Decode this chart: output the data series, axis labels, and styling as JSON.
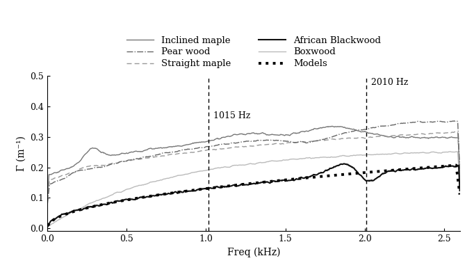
{
  "xlim": [
    0,
    2.6
  ],
  "ylim": [
    -0.01,
    0.5
  ],
  "xlabel": "Freq (kHz)",
  "ylabel": "Γ (m⁻¹)",
  "vline1_x": 1.015,
  "vline2_x": 2.01,
  "vline1_label": "1015 Hz",
  "vline2_label": "2010 Hz",
  "xticks": [
    0,
    0.5,
    1.0,
    1.5,
    2.0,
    2.5
  ],
  "yticks": [
    0,
    0.1,
    0.2,
    0.3,
    0.4,
    0.5
  ],
  "inclined_maple_color": "#777777",
  "straight_maple_color": "#999999",
  "boxwood_color": "#bbbbbb",
  "pear_wood_color": "#666666",
  "african_color": "#111111",
  "model_color": "#000000",
  "background": "#ffffff"
}
